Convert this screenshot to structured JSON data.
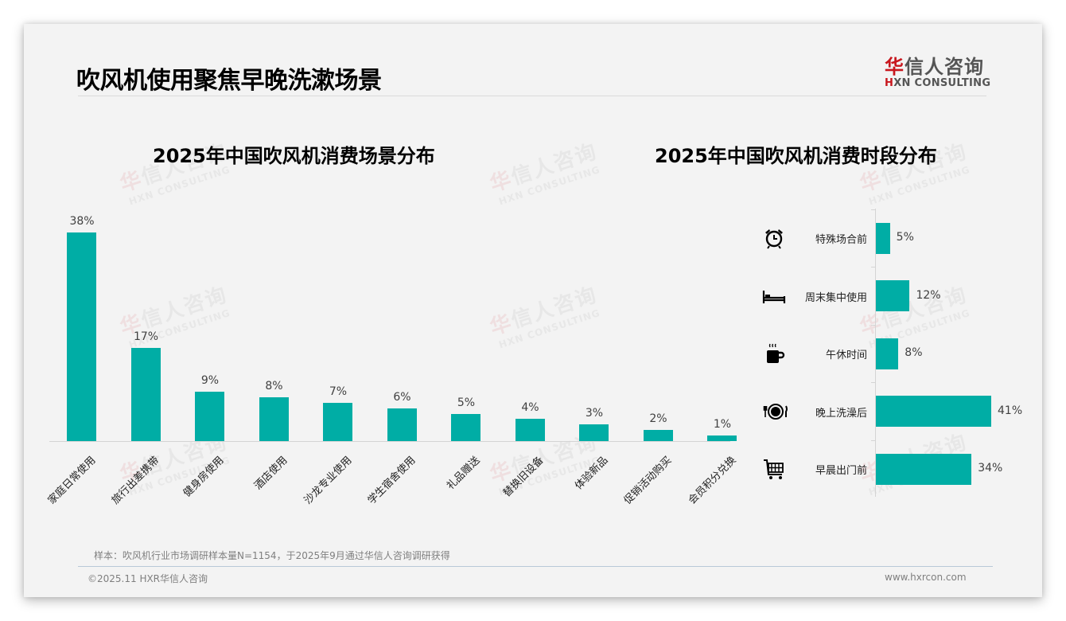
{
  "page": {
    "title": "吹风机使用聚焦早晚洗漱场景",
    "logo": {
      "cn_red": "华",
      "cn_rest": "信人咨询",
      "en_mark": "H",
      "en_rest": "XN CONSULTING"
    },
    "watermark": {
      "cn_red": "华",
      "cn_rest": "信人咨询",
      "en": "HXN CONSULTING"
    },
    "note": "样本：吹风机行业市场调研样本量N=1154，于2025年9月通过华信人咨询调研获得",
    "copyright": "©2025.11 HXR华信人咨询",
    "website": "www.hxrcon.com",
    "accent_color": "#00ada5"
  },
  "chart_data": [
    {
      "type": "bar",
      "title": "2025年中国吹风机消费场景分布",
      "xlabel": "",
      "ylabel": "",
      "categories": [
        "家庭日常使用",
        "旅行出差携带",
        "健身房使用",
        "酒店使用",
        "沙龙专业使用",
        "学生宿舍使用",
        "礼品赠送",
        "替换旧设备",
        "体验新品",
        "促销活动购买",
        "会员积分兑换"
      ],
      "values": [
        38,
        17,
        9,
        8,
        7,
        6,
        5,
        4,
        3,
        2,
        1
      ],
      "value_labels": [
        "38%",
        "17%",
        "9%",
        "8%",
        "7%",
        "6%",
        "5%",
        "4%",
        "3%",
        "2%",
        "1%"
      ],
      "unit": "%",
      "grid": false,
      "legend": "none",
      "color": "#00ada5"
    },
    {
      "type": "bar",
      "orientation": "horizontal",
      "title": "2025年中国吹风机消费时段分布",
      "xlabel": "",
      "ylabel": "",
      "categories": [
        "特殊场合前",
        "周末集中使用",
        "午休时间",
        "晚上洗澡后",
        "早晨出门前"
      ],
      "values": [
        5,
        12,
        8,
        41,
        34
      ],
      "value_labels": [
        "5%",
        "12%",
        "8%",
        "41%",
        "34%"
      ],
      "icons": [
        "alarm-clock-icon",
        "bed-icon",
        "coffee-cup-icon",
        "dinner-plate-icon",
        "shopping-cart-icon"
      ],
      "unit": "%",
      "grid": false,
      "legend": "none",
      "color": "#00ada5"
    }
  ]
}
